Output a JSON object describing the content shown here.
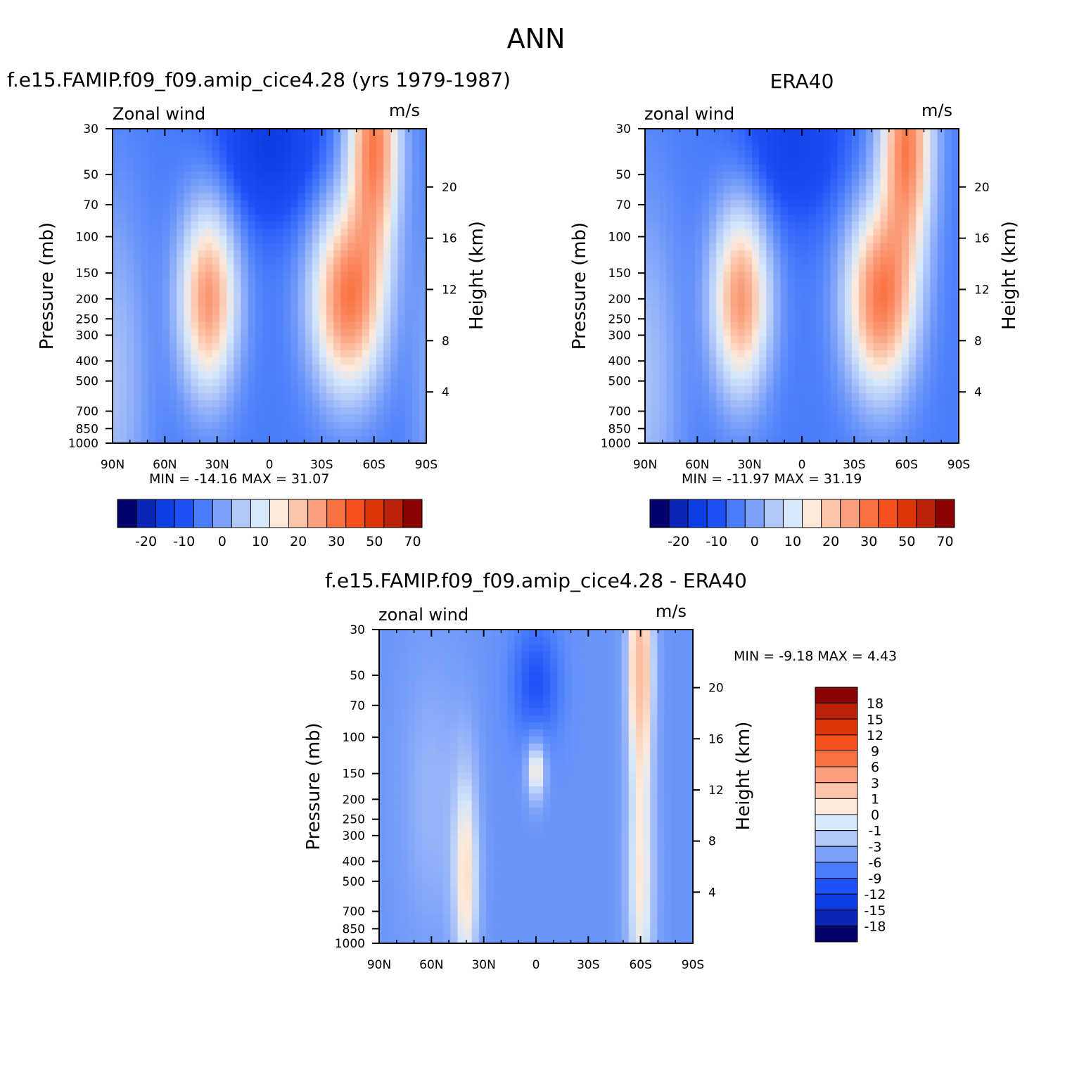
{
  "title": "ANN",
  "chart_data": [
    {
      "type": "heatmap",
      "title": "f.e15.FAMIP.f09_f09.amip_cice4.28 (yrs 1979-1987)",
      "subtitle_left": "Zonal wind",
      "subtitle_right": "m/s",
      "ylabel": "Pressure (mb)",
      "y2label": "Height (km)",
      "x_ticks": [
        "90N",
        "60N",
        "30N",
        "0",
        "30S",
        "60S",
        "90S"
      ],
      "y_ticks": [
        "30",
        "50",
        "70",
        "100",
        "150",
        "200",
        "250",
        "300",
        "400",
        "500",
        "700",
        "850",
        "1000"
      ],
      "y2_ticks": [
        "20",
        "16",
        "12",
        "8",
        "4"
      ],
      "stats": "MIN =  -14.16   MAX =   31.07",
      "min": -14.16,
      "max": 31.07,
      "colorbar_labels": [
        "-20",
        "-10",
        "0",
        "10",
        "20",
        "30",
        "50",
        "70"
      ],
      "features": [
        {
          "lat": 35,
          "p": 200,
          "value": 25,
          "desc": "northern jet core"
        },
        {
          "lat": -50,
          "p": 200,
          "value": 30,
          "desc": "southern jet core"
        },
        {
          "lat": -60,
          "p": 30,
          "value": 30,
          "desc": "southern stratospheric max"
        },
        {
          "lat": 0,
          "p": 40,
          "value": -12,
          "desc": "tropical easterlies"
        }
      ]
    },
    {
      "type": "heatmap",
      "title": "ERA40",
      "subtitle_left": "zonal wind",
      "subtitle_right": "m/s",
      "ylabel": "Pressure (mb)",
      "y2label": "Height (km)",
      "x_ticks": [
        "90N",
        "60N",
        "30N",
        "0",
        "30S",
        "60S",
        "90S"
      ],
      "y_ticks": [
        "30",
        "50",
        "70",
        "100",
        "150",
        "200",
        "250",
        "300",
        "400",
        "500",
        "700",
        "850",
        "1000"
      ],
      "y2_ticks": [
        "20",
        "16",
        "12",
        "8",
        "4"
      ],
      "stats": "MIN =  -11.97   MAX =   31.19",
      "min": -11.97,
      "max": 31.19,
      "colorbar_labels": [
        "-20",
        "-10",
        "0",
        "10",
        "20",
        "30",
        "50",
        "70"
      ],
      "features": [
        {
          "lat": 35,
          "p": 200,
          "value": 25,
          "desc": "northern jet core"
        },
        {
          "lat": -45,
          "p": 200,
          "value": 30,
          "desc": "southern jet core"
        },
        {
          "lat": -60,
          "p": 30,
          "value": 30,
          "desc": "southern stratospheric max"
        },
        {
          "lat": 5,
          "p": 40,
          "value": -11,
          "desc": "tropical easterlies"
        }
      ]
    },
    {
      "type": "heatmap",
      "title": "f.e15.FAMIP.f09_f09.amip_cice4.28 - ERA40",
      "subtitle_left": "zonal wind",
      "subtitle_right": "m/s",
      "ylabel": "Pressure (mb)",
      "y2label": "Height (km)",
      "x_ticks": [
        "90N",
        "60N",
        "30N",
        "0",
        "30S",
        "60S",
        "90S"
      ],
      "y_ticks": [
        "30",
        "50",
        "70",
        "100",
        "150",
        "200",
        "250",
        "300",
        "400",
        "500",
        "700",
        "850",
        "1000"
      ],
      "y2_ticks": [
        "20",
        "16",
        "12",
        "8",
        "4"
      ],
      "stats": "MIN =    -9.18   MAX =     4.43",
      "min": -9.18,
      "max": 4.43,
      "colorbar_labels": [
        "18",
        "15",
        "12",
        "9",
        "6",
        "3",
        "1",
        "0",
        "-1",
        "-3",
        "-6",
        "-9",
        "-12",
        "-15",
        "-18"
      ],
      "features": [
        {
          "lat": 40,
          "p": 400,
          "value": 2,
          "desc": "positive bias NH jet"
        },
        {
          "lat": -60,
          "p": 40,
          "value": 3,
          "desc": "positive bias SH strat"
        },
        {
          "lat": 0,
          "p": 55,
          "value": -8,
          "desc": "negative bias tropics"
        },
        {
          "lat": 0,
          "p": 140,
          "value": 2,
          "desc": "positive bias equatorial UT"
        }
      ]
    }
  ],
  "colorbar_colors": [
    "#02016d",
    "#0a27b6",
    "#0b3ee4",
    "#1e52f8",
    "#4a7dfb",
    "#7ba1f9",
    "#b2c8f9",
    "#d6e8fa",
    "#fde9da",
    "#fcc4a8",
    "#fba07e",
    "#fb7242",
    "#f84f1f",
    "#de3606",
    "#ba2207",
    "#8a0101"
  ],
  "diff_colorbar_colors": [
    "#8a0101",
    "#ba2207",
    "#de3606",
    "#f84f1f",
    "#fb7242",
    "#fba07e",
    "#fcc4a8",
    "#fde9da",
    "#d6e8fa",
    "#b2c8f9",
    "#7ba1f9",
    "#4a7dfb",
    "#1e52f8",
    "#0b3ee4",
    "#0a27b6",
    "#02016d"
  ]
}
